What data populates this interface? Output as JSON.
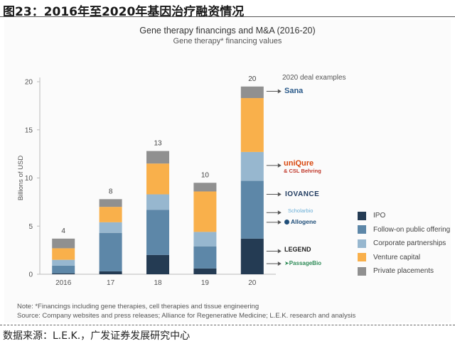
{
  "figure_title": "图23：2016年至2020年基因治疗融资情况",
  "source_line": "数据来源：L.E.K.，广发证券发展研究中心",
  "notes": {
    "note": "Note: *Financings including gene therapies, cell therapies and tissue engineering",
    "source": "Source: Company websites and press releases; Alliance for Regenerative Medicine; L.E.K. research and analysis"
  },
  "deal_examples": {
    "header": "2020 deal examples",
    "logos": [
      {
        "name": "sana",
        "text": "Sana",
        "color": "#2a5a8a"
      },
      {
        "name": "uniqure",
        "text": "uniQure",
        "color": "#d9480f"
      },
      {
        "name": "csl-behring",
        "text": "& CSL Behring",
        "color": "#c0392b"
      },
      {
        "name": "iovance",
        "text": "IOVANCE",
        "color": "#1f3a5f"
      },
      {
        "name": "scholar-rock",
        "text": "Scholarbio",
        "color": "#6aaed6"
      },
      {
        "name": "allogene",
        "text": "Allogene",
        "color": "#1f4e79"
      },
      {
        "name": "legend",
        "text": "LEGEND",
        "color": "#222222"
      },
      {
        "name": "passage-bio",
        "text": "PassageBio",
        "color": "#2e8b57"
      }
    ]
  },
  "chart_data": {
    "type": "bar",
    "stacked": true,
    "title": "Gene therapy financings and M&A (2016-20)",
    "subtitle": "Gene therapy* financing values",
    "xlabel": "",
    "ylabel": "Billions of USD",
    "ylim": [
      0,
      20
    ],
    "yticks": [
      0,
      5,
      10,
      15,
      20
    ],
    "categories": [
      "2016",
      "17",
      "18",
      "19",
      "20"
    ],
    "totals": [
      "4",
      "8",
      "13",
      "10",
      "20"
    ],
    "series": [
      {
        "name": "IPO",
        "color": "#243b53",
        "values": [
          0.1,
          0.3,
          2.0,
          0.6,
          3.7
        ]
      },
      {
        "name": "Follow-on public offering",
        "color": "#5d87a8",
        "values": [
          0.8,
          4.0,
          4.7,
          2.3,
          6.0
        ]
      },
      {
        "name": "Corporate partnerships",
        "color": "#97b7cf",
        "values": [
          0.6,
          1.1,
          1.6,
          1.5,
          3.0
        ]
      },
      {
        "name": "Venture capital",
        "color": "#f9b04b",
        "values": [
          1.2,
          1.6,
          3.2,
          4.2,
          5.6
        ]
      },
      {
        "name": "Private placements",
        "color": "#909090",
        "values": [
          1.0,
          0.8,
          1.3,
          0.9,
          1.2
        ]
      }
    ],
    "legend_position": "right"
  }
}
